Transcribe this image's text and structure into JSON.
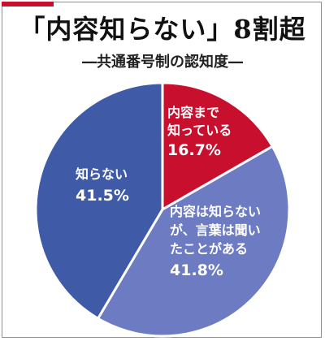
{
  "title": "「内容知らない」8割超",
  "subtitle": "―共通番号制の認知度―",
  "colors": {
    "accent": "#c8102e",
    "slice_known": "#c8102e",
    "slice_heard": "#6c7bc2",
    "slice_unknown": "#3f5aa6"
  },
  "chart_data": {
    "type": "pie",
    "title": "「内容知らない」8割超",
    "subtitle": "―共通番号制の認知度―",
    "slices": [
      {
        "label_lines": [
          "内容まで",
          "知っている"
        ],
        "value": 16.7,
        "value_text": "16.7%",
        "color": "#c8102e"
      },
      {
        "label_lines": [
          "内容は知らない",
          "が、言葉は聞い",
          "たことがある"
        ],
        "value": 41.8,
        "value_text": "41.8%",
        "color": "#6c7bc2"
      },
      {
        "label_lines": [
          "知らない"
        ],
        "value": 41.5,
        "value_text": "41.5%",
        "color": "#3f5aa6"
      }
    ]
  }
}
